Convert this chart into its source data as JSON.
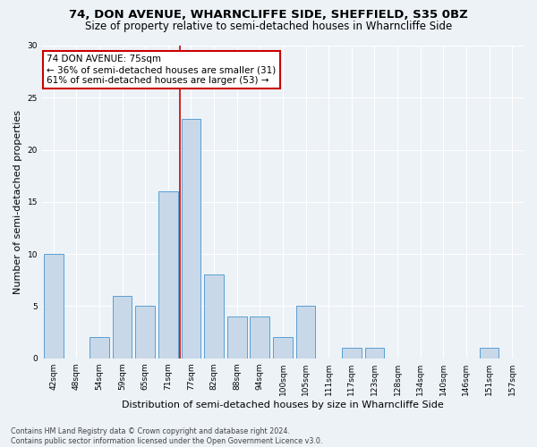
{
  "title": "74, DON AVENUE, WHARNCLIFFE SIDE, SHEFFIELD, S35 0BZ",
  "subtitle": "Size of property relative to semi-detached houses in Wharncliffe Side",
  "xlabel": "Distribution of semi-detached houses by size in Wharncliffe Side",
  "ylabel": "Number of semi-detached properties",
  "categories": [
    "42sqm",
    "48sqm",
    "54sqm",
    "59sqm",
    "65sqm",
    "71sqm",
    "77sqm",
    "82sqm",
    "88sqm",
    "94sqm",
    "100sqm",
    "105sqm",
    "111sqm",
    "117sqm",
    "123sqm",
    "128sqm",
    "134sqm",
    "140sqm",
    "146sqm",
    "151sqm",
    "157sqm"
  ],
  "values": [
    10,
    0,
    2,
    6,
    5,
    16,
    23,
    8,
    4,
    4,
    2,
    5,
    0,
    1,
    1,
    0,
    0,
    0,
    0,
    1,
    0
  ],
  "bar_color": "#c8d8e8",
  "bar_edge_color": "#5a9fd4",
  "property_label": "74 DON AVENUE: 75sqm",
  "smaller_pct": 36,
  "smaller_count": 31,
  "larger_pct": 61,
  "larger_count": 53,
  "vline_x_index": 5.5,
  "ylim": [
    0,
    30
  ],
  "yticks": [
    0,
    5,
    10,
    15,
    20,
    25,
    30
  ],
  "annotation_box_color": "#ffffff",
  "annotation_box_edge": "#cc0000",
  "vline_color": "#cc0000",
  "footnote": "Contains HM Land Registry data © Crown copyright and database right 2024.\nContains public sector information licensed under the Open Government Licence v3.0.",
  "background_color": "#edf2f7",
  "grid_color": "#ffffff",
  "title_fontsize": 9.5,
  "subtitle_fontsize": 8.5,
  "xlabel_fontsize": 8,
  "ylabel_fontsize": 8,
  "tick_fontsize": 6.5,
  "annot_fontsize": 7.5
}
